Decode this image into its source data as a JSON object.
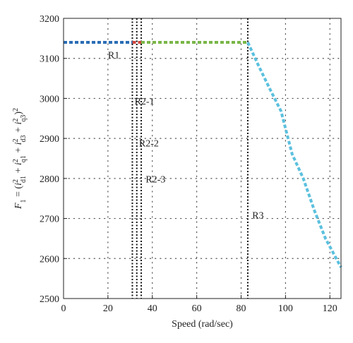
{
  "chart_data": {
    "type": "line",
    "title": "",
    "xlabel": "Speed (rad/sec)",
    "ylabel_parts": {
      "f": "F",
      "f_sub": "1",
      "eq": " = (",
      "i1": "i",
      "i1_sup": "2",
      "i1_sub": "d1",
      "plus1": " + ",
      "i2": "i",
      "i2_sup": "2",
      "i2_sub": "q1",
      "plus2": " + ",
      "i3": "i",
      "i3_sup": "2",
      "i3_sub": "d3",
      "plus3": " + ",
      "i4": "i",
      "i4_sup": "2",
      "i4_sub": "q3",
      "close": ")",
      "close_sup": "2"
    },
    "xlim": [
      0,
      125
    ],
    "ylim": [
      2500,
      3200
    ],
    "x_ticks": [
      0,
      20,
      40,
      60,
      80,
      100,
      120
    ],
    "y_ticks": [
      2500,
      2600,
      2700,
      2800,
      2900,
      3000,
      3100,
      3200
    ],
    "grid": true,
    "series": [
      {
        "color": "#2a6db5",
        "points": [
          [
            0,
            3140
          ],
          [
            31,
            3140
          ]
        ]
      },
      {
        "color": "#d0463c",
        "points": [
          [
            31,
            3140
          ],
          [
            35,
            3140
          ]
        ]
      },
      {
        "color": "#7ab648",
        "points": [
          [
            35,
            3140
          ],
          [
            83,
            3140
          ]
        ]
      },
      {
        "color": "#5bc0de",
        "points": [
          [
            83,
            3140
          ],
          [
            88,
            3080
          ],
          [
            93,
            3023
          ],
          [
            98,
            2968
          ],
          [
            103,
            2861
          ],
          [
            108,
            2800
          ],
          [
            113,
            2720
          ],
          [
            118,
            2650
          ],
          [
            125,
            2578
          ]
        ]
      }
    ],
    "boundaries": [
      31,
      33,
      35,
      83
    ],
    "region_labels": [
      {
        "text": "R1",
        "x": 20,
        "y": 3100
      },
      {
        "text": "R2-1",
        "x": 32,
        "y": 2985
      },
      {
        "text": "R2-2",
        "x": 34,
        "y": 2880
      },
      {
        "text": "R2-3",
        "x": 37,
        "y": 2790
      },
      {
        "text": "R3",
        "x": 85,
        "y": 2700
      }
    ]
  }
}
